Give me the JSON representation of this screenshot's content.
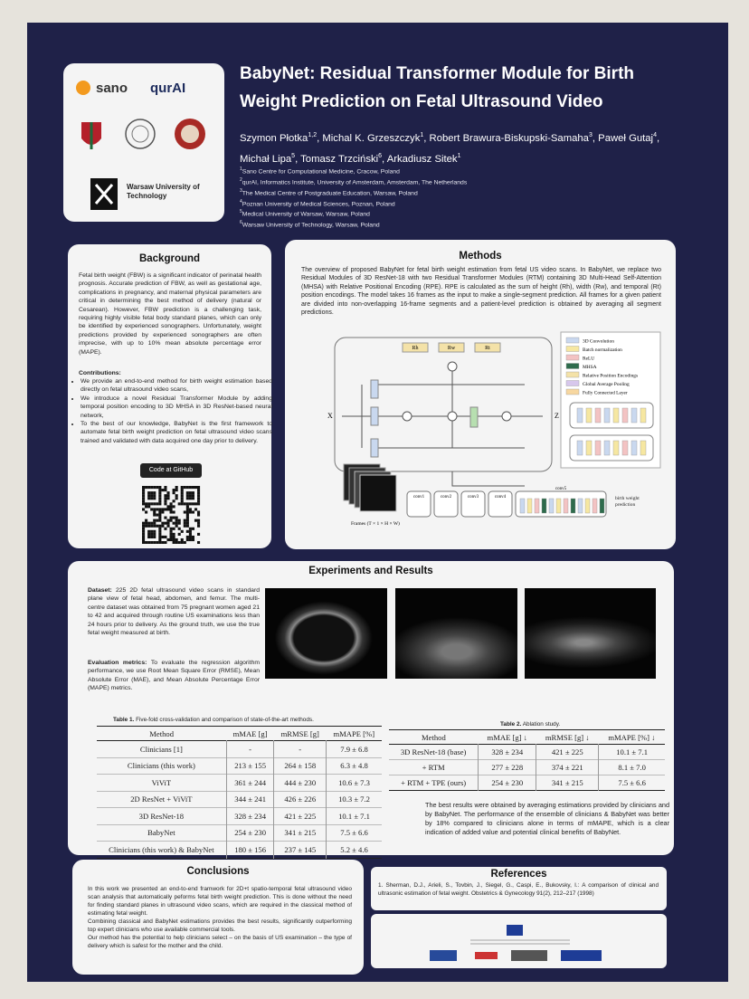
{
  "header": {
    "logos": [
      "sano",
      "qurAI",
      "Warsaw University of Technology"
    ],
    "title": "BabyNet: Residual Transformer Module for Birth Weight Prediction on Fetal Ultrasound Video",
    "authors": [
      {
        "name": "Szymon Płotka",
        "aff": "1,2"
      },
      {
        "name": "Michal K. Grzeszczyk",
        "aff": "1"
      },
      {
        "name": "Robert Brawura-Biskupski-Samaha",
        "aff": "3"
      },
      {
        "name": "Paweł Gutaj",
        "aff": "4"
      },
      {
        "name": "Michał Lipa",
        "aff": "5"
      },
      {
        "name": "Tomasz Trzciński",
        "aff": "6"
      },
      {
        "name": "Arkadiusz Sitek",
        "aff": "1"
      }
    ],
    "affiliations": [
      {
        "num": "1",
        "text": "Sano Centre for Computational Medicine, Cracow, Poland"
      },
      {
        "num": "2",
        "text": "qurAI, Informatics Institute, University of Amsterdam, Amsterdam, The Netherlands"
      },
      {
        "num": "3",
        "text": "The Medical Centre of Postgraduate Education, Warsaw, Poland"
      },
      {
        "num": "4",
        "text": "Poznan University of Medical Sciences, Poznan, Poland"
      },
      {
        "num": "5",
        "text": "Medical University of Warsaw, Warsaw, Poland"
      },
      {
        "num": "6",
        "text": "Warsaw University of Technology, Warsaw, Poland"
      }
    ]
  },
  "background": {
    "heading": "Background",
    "text": "Fetal birth weight (FBW) is a significant indicator of perinatal health prognosis. Accurate prediction of FBW, as well as gestational age, complications in pregnancy, and maternal physical parameters are critical in determining the best method of delivery (natural or Cesarean). However, FBW prediction is a challenging task, requiring highly visible fetal body standard planes, which can only be identified by experienced sonographers. Unfortunately, weight predictions provided by experienced sonographers are often imprecise, with up to 10% mean absolute percentage error (MAPE).",
    "contributions_heading": "Contributions:",
    "contributions": [
      "We provide an end-to-end method for birth weight estimation based directly on fetal ultrasound video scans,",
      "We introduce a novel Residual Transformer Module by adding temporal position encoding to 3D MHSA in 3D ResNet-based neural network,",
      "To the best of our knowledge, BabyNet is the first framework to automate fetal birth weight prediction on fetal ultrasound video scans trained and validated with data acquired one day prior to delivery."
    ],
    "code_label": "Code at GitHub"
  },
  "methods": {
    "heading": "Methods",
    "text": "The overview of proposed BabyNet for fetal birth weight estimation from fetal US video scans. In BabyNet, we replace two Residual Modules of 3D ResNet-18 with two Residual Transformer Modules (RTM) containing 3D Multi-Head Self-Attention (MHSA) with Relative Positional Encoding (RPE). RPE is calculated as the sum of height (Rh), width (Rw), and temporal (Rt) position encodings. The model takes 16 frames as the input to make a single-segment prediction. All frames for a given patient are divided into non-overlapping 16-frame segments and a patient-level prediction is obtained by averaging all segment predictions.",
    "figure": {
      "encodings": [
        "Rh",
        "Rw",
        "Rt"
      ],
      "input": "X",
      "output": "Z",
      "legend": [
        "3D Convolution",
        "Batch normalization",
        "ReLU",
        "MHSA",
        "Relative Position Encodings",
        "Global Average Pooling",
        "Fully Connected Layer"
      ],
      "stages": [
        "conv1",
        "conv2",
        "conv3",
        "conv4",
        "conv5"
      ],
      "frames": "Frames (T × 1 × H × W)",
      "prediction": "birth weight prediction"
    }
  },
  "experiments": {
    "heading": "Experiments and Results",
    "dataset_label": "Dataset:",
    "dataset_text": "225 2D fetal ultrasound video scans in standard plane view of fetal head, abdomen, and femur. The multi-centre dataset was obtained from 75 pregnant women aged 21 to 42 and acquired through routine US examinations less than 24 hours prior to delivery. As the ground truth, we use the true fetal weight measured at birth.",
    "metrics_label": "Evaluation metrics:",
    "metrics_text": "To evaluate the regression algorithm performance, we use Root Mean Square Error (RMSE), Mean Absolute Error (MAE), and Mean Absolute Percentage Error (MAPE) metrics.",
    "table1": {
      "label": "Table 1.",
      "caption": "Five-fold cross-validation and comparison of state-of-the-art methods.",
      "header": [
        "Method",
        "mMAE [g]",
        "mRMSE [g]",
        "mMAPE [%]"
      ],
      "rows": [
        [
          "Clinicians [1]",
          "-",
          "-",
          "7.9 ± 6.8"
        ],
        [
          "Clinicians (this work)",
          "213 ± 155",
          "264 ± 158",
          "6.3 ± 4.8"
        ],
        [
          "ViViT",
          "361 ± 244",
          "444 ± 230",
          "10.6 ± 7.3"
        ],
        [
          "2D ResNet + ViViT",
          "344 ± 241",
          "426 ± 226",
          "10.3 ± 7.2"
        ],
        [
          "3D ResNet-18",
          "328 ± 234",
          "421 ± 225",
          "10.1 ± 7.1"
        ],
        [
          "BabyNet",
          "254 ± 230",
          "341 ± 215",
          "7.5 ± 6.6"
        ],
        [
          "Clinicians (this work) & BabyNet",
          "180 ± 156",
          "237 ± 145",
          "5.2 ± 4.6"
        ]
      ]
    },
    "table2": {
      "label": "Table 2.",
      "caption": "Ablation study.",
      "header": [
        "Method",
        "mMAE [g] ↓",
        "mRMSE [g] ↓",
        "mMAPE [%] ↓"
      ],
      "rows": [
        [
          "3D ResNet-18 (base)",
          "328 ± 234",
          "421 ± 225",
          "10.1 ± 7.1"
        ],
        [
          "+ RTM",
          "277 ± 228",
          "374 ± 221",
          "8.1 ± 7.0"
        ],
        [
          "+ RTM + TPE (ours)",
          "254 ± 230",
          "341 ± 215",
          "7.5 ± 6.6"
        ]
      ]
    },
    "results_text": "The best results were obtained by averaging estimations provided by clinicians and by BabyNet. The performance of the ensemble of clinicians & BabyNet was better by 18% compared to clinicians alone in terms of mMAPE, which is a clear indication of added value and potential clinical benefits of BabyNet."
  },
  "conclusions": {
    "heading": "Conclusions",
    "paragraphs": [
      "In this work we presented an end-to-end framwork for 2D+t spatio-temporal fetal ultrasound video scan analysis that automatically peforms fetal birth weight prediction. This is done without the need for finding standard planes in ultrasound video scans, which are required in the classical method of estimating fetal weight.",
      "Combining classical and BabyNet estimations provides the best results, significantly outperforming top expert clinicians who use available commercial tools.",
      "Our method has the potential to help clinicians select – on the basis of US examination – the type of delivery which is safest for the mother and the child."
    ]
  },
  "references": {
    "heading": "References",
    "items": [
      "1. Sherman, D.J., Arieli, S., Tovbin, J., Siegel, G., Caspi, E., Bukovsky, I.: A comparison of clinical and ultrasonic estimation of fetal weight. Obstetrics & Gynecology 91(2), 212–217 (1998)"
    ]
  }
}
